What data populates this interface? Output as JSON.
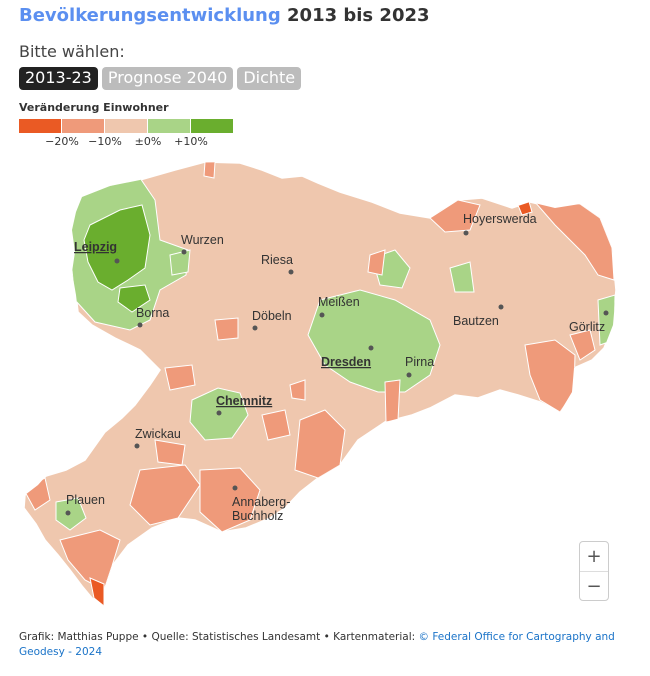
{
  "title": {
    "highlight": "Bevölkerungsentwicklung",
    "rest": " 2013 bis 2023"
  },
  "prompt": "Bitte wählen:",
  "tabs": [
    {
      "label": "2013-23",
      "active": true
    },
    {
      "label": "Prognose 2040",
      "active": false
    },
    {
      "label": "Dichte",
      "active": false
    }
  ],
  "legend": {
    "title": "Veränderung Einwohner",
    "colors": [
      "#ea5a24",
      "#ef9a7a",
      "#efc7ae",
      "#a9d487",
      "#6aae2e"
    ],
    "ticks": [
      "−20%",
      "−10%",
      "±0%",
      "+10%"
    ]
  },
  "cities": [
    {
      "name": "Leipzig",
      "major": true
    },
    {
      "name": "Wurzen",
      "major": false
    },
    {
      "name": "Riesa",
      "major": false
    },
    {
      "name": "Hoyerswerda",
      "major": false
    },
    {
      "name": "Borna",
      "major": false
    },
    {
      "name": "Döbeln",
      "major": false
    },
    {
      "name": "Meißen",
      "major": false
    },
    {
      "name": "Bautzen",
      "major": false
    },
    {
      "name": "Görlitz",
      "major": false
    },
    {
      "name": "Dresden",
      "major": true
    },
    {
      "name": "Pirna",
      "major": false
    },
    {
      "name": "Chemnitz",
      "major": true
    },
    {
      "name": "Zwickau",
      "major": false
    },
    {
      "name": "Plauen",
      "major": false
    },
    {
      "name": "Annaberg-",
      "major": false
    },
    {
      "name": "Buchholz",
      "major": false
    }
  ],
  "zoom": {
    "in": "+",
    "out": "−"
  },
  "footer": {
    "text": "Grafik: Matthias Puppe • Quelle: Statistisches Landesamt • Kartenmaterial: ",
    "link": "© Federal Office for Cartography and Geodesy - 2024"
  }
}
